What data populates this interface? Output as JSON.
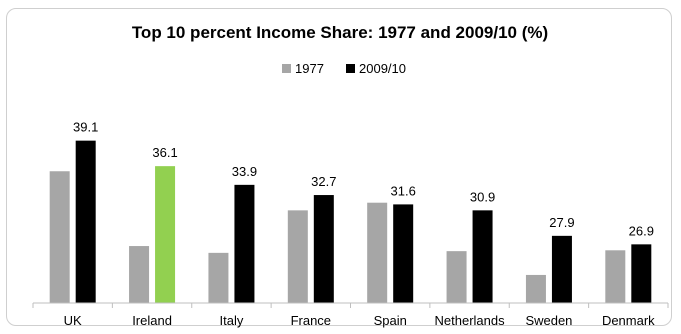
{
  "chart_data": {
    "type": "bar",
    "title": "Top 10 percent Income Share:  1977 and 2009/10 (%)",
    "xlabel": "",
    "ylabel": "",
    "ylim": [
      20,
      40
    ],
    "grid": false,
    "legend_position": "top-center",
    "categories": [
      "UK",
      "Ireland",
      "Italy",
      "France",
      "Spain",
      "Netherlands",
      "Sweden",
      "Denmark"
    ],
    "series": [
      {
        "name": "1977",
        "color": "#a6a6a6",
        "values": [
          35.5,
          26.7,
          25.9,
          30.9,
          31.8,
          26.1,
          23.3,
          26.2
        ]
      },
      {
        "name": "2009/10",
        "color": "#000000",
        "highlight": {
          "index": 1,
          "color": "#92d050"
        },
        "values": [
          39.1,
          36.1,
          33.9,
          32.7,
          31.6,
          30.9,
          27.9,
          26.9
        ],
        "labels": [
          "39.1",
          "36.1",
          "33.9",
          "32.7",
          "31.6",
          "30.9",
          "27.9",
          "26.9"
        ]
      }
    ]
  }
}
